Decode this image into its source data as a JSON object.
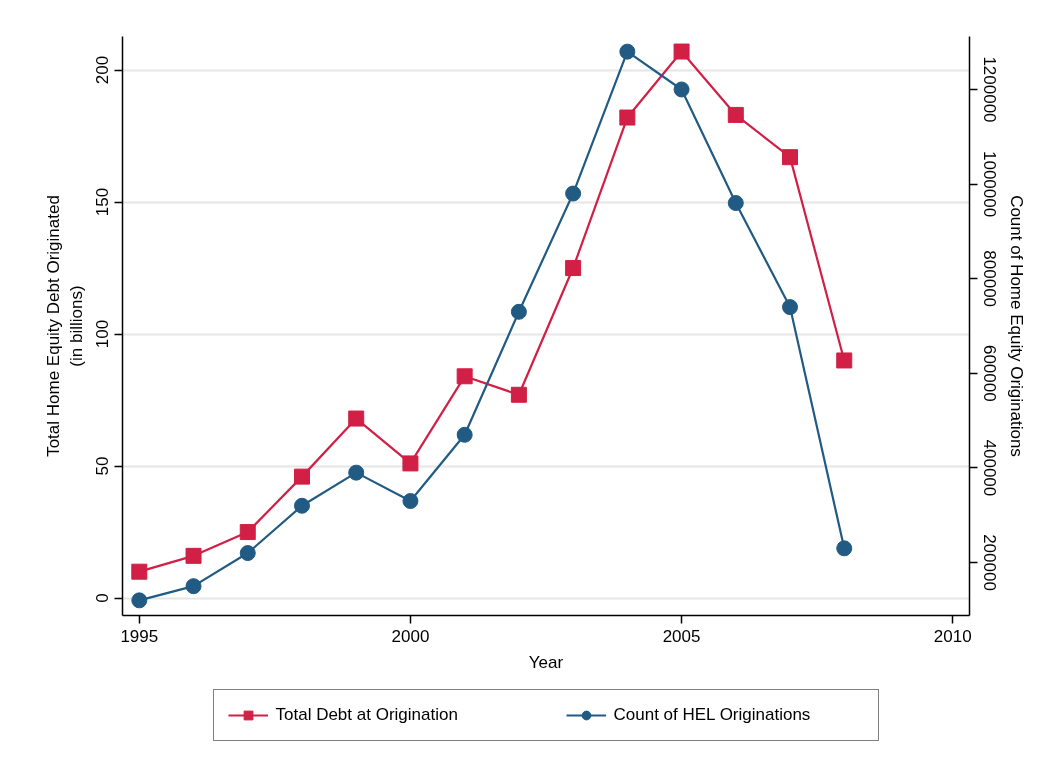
{
  "chart_data": {
    "type": "line",
    "xlabel": "Year",
    "ylabel": "Total Home Equity Debt Originated\n(in billions)",
    "y2label": "Count of Home Equity Originations",
    "x": [
      1995,
      1996,
      1997,
      1998,
      1999,
      2000,
      2001,
      2002,
      2003,
      2004,
      2005,
      2006,
      2007,
      2008
    ],
    "xlim": [
      1994.69,
      2010.31
    ],
    "xticks": [
      1995,
      2000,
      2005,
      2010
    ],
    "ylim": [
      -6.6,
      212.7
    ],
    "yticks": [
      0,
      50,
      100,
      150,
      200
    ],
    "y2lim": [
      88000,
      1312000
    ],
    "y2ticks": [
      200000,
      400000,
      600000,
      800000,
      1000000,
      1200000
    ],
    "grid": "y",
    "legend": "bottom",
    "line_style": "solid",
    "series": [
      {
        "name": "Total Debt at Origination",
        "color": "#d21f45",
        "marker": "square",
        "values": [
          10,
          16,
          25,
          46,
          68,
          51,
          84,
          77,
          125,
          182,
          207,
          183,
          167,
          90
        ]
      },
      {
        "name": "Count of HEL Originations",
        "color": "#215b84",
        "marker": "circle",
        "axis": "y2",
        "values": [
          120000,
          150000,
          220000,
          320000,
          390000,
          330000,
          470000,
          730000,
          980000,
          1280000,
          1200000,
          960000,
          740000,
          230000
        ]
      }
    ]
  }
}
